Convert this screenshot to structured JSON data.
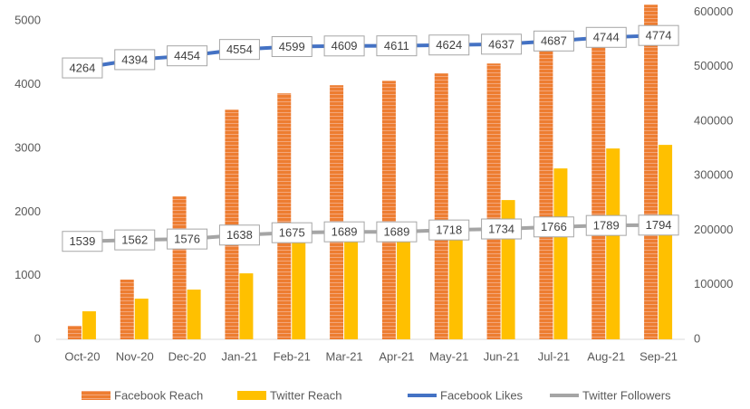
{
  "chart_data": {
    "type": "combo",
    "categories": [
      "Oct-20",
      "Nov-20",
      "Dec-20",
      "Jan-21",
      "Feb-21",
      "Mar-21",
      "Apr-21",
      "May-21",
      "Jun-21",
      "Jul-21",
      "Aug-21",
      "Sep-21"
    ],
    "series": [
      {
        "name": "Facebook Reach",
        "type": "bar",
        "axis": "y2",
        "color": "#ed7d31",
        "values": [
          24900,
          109500,
          262000,
          421000,
          451000,
          466000,
          474000,
          487600,
          505800,
          539000,
          568800,
          613600
        ]
      },
      {
        "name": "Twitter Reach",
        "type": "bar",
        "axis": "y2",
        "color": "#ffc000",
        "values": [
          51400,
          74600,
          91200,
          121000,
          177400,
          187400,
          187000,
          218900,
          255400,
          313400,
          350000,
          356600
        ]
      },
      {
        "name": "Facebook Likes",
        "type": "line",
        "color": "#4472c4",
        "values": [
          4264,
          4394,
          4454,
          4554,
          4599,
          4609,
          4611,
          4624,
          4637,
          4687,
          4744,
          4774
        ]
      },
      {
        "name": "Twitter Followers",
        "type": "line",
        "color": "#a5a5a5",
        "values": [
          1539,
          1562,
          1576,
          1638,
          1675,
          1689,
          1689,
          1718,
          1734,
          1766,
          1789,
          1794
        ]
      }
    ],
    "ylim": [
      0,
      5260
    ],
    "yticks": [
      0,
      1000,
      2000,
      3000,
      4000,
      5000
    ],
    "y2lim": [
      0,
      614000
    ],
    "y2ticks": [
      0,
      100000,
      200000,
      300000,
      400000,
      500000,
      600000
    ],
    "legend": "bottom"
  }
}
